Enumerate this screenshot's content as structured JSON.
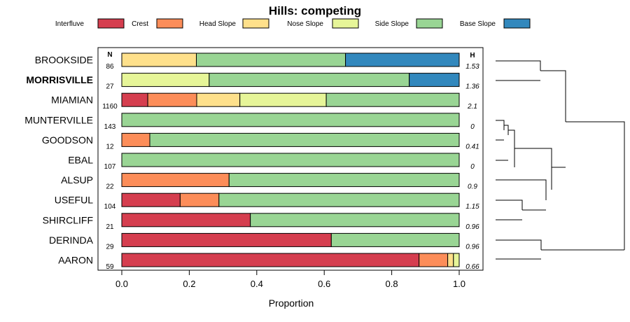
{
  "colors": {
    "Interfluve": "#d53e4f",
    "Crest": "#fc8d59",
    "Head Slope": "#fee08b",
    "Nose Slope": "#e6f598",
    "Side Slope": "#99d594",
    "Base Slope": "#3288bd"
  },
  "chart_data": {
    "type": "bar",
    "orientation": "horizontal",
    "stacked": true,
    "title": "Hills: competing",
    "xlabel": "Proportion",
    "ylabel": "",
    "xlim": [
      0,
      1
    ],
    "xticks": [
      "0.0",
      "0.2",
      "0.4",
      "0.6",
      "0.8",
      "1.0"
    ],
    "n_header": "N",
    "h_header": "H",
    "legend": [
      "Interfluve",
      "Crest",
      "Head Slope",
      "Nose Slope",
      "Side Slope",
      "Base Slope"
    ],
    "legend_position": "top",
    "categories": [
      "BROOKSIDE",
      "MORRISVILLE",
      "MIAMIAN",
      "MUNTERVILLE",
      "GOODSON",
      "EBAL",
      "ALSUP",
      "USEFUL",
      "SHIRCLIFF",
      "DERINDA",
      "AARON"
    ],
    "highlight": "MORRISVILLE",
    "N": [
      "86",
      "27",
      "1160",
      "143",
      "12",
      "107",
      "22",
      "104",
      "21",
      "29",
      "59"
    ],
    "H": [
      "1.53",
      "1.36",
      "2.1",
      "0",
      "0.41",
      "0",
      "0.9",
      "1.15",
      "0.96",
      "0.96",
      "0.66"
    ],
    "series": [
      {
        "name": "Interfluve",
        "values": [
          0,
          0,
          0.077,
          0,
          0,
          0,
          0,
          0.173,
          0.381,
          0.621,
          0.881
        ]
      },
      {
        "name": "Crest",
        "values": [
          0,
          0,
          0.145,
          0,
          0.083,
          0,
          0.318,
          0.115,
          0,
          0,
          0.085
        ]
      },
      {
        "name": "Head Slope",
        "values": [
          0.221,
          0,
          0.128,
          0,
          0,
          0,
          0,
          0,
          0,
          0,
          0.017
        ]
      },
      {
        "name": "Nose Slope",
        "values": [
          0,
          0.259,
          0.256,
          0,
          0,
          0,
          0,
          0,
          0,
          0,
          0.017
        ]
      },
      {
        "name": "Side Slope",
        "values": [
          0.442,
          0.593,
          0.394,
          1.0,
          0.917,
          1.0,
          0.682,
          0.712,
          0.619,
          0.379,
          0
        ]
      },
      {
        "name": "Base Slope",
        "values": [
          0.337,
          0.148,
          0,
          0,
          0,
          0,
          0,
          0,
          0,
          0,
          0
        ]
      }
    ]
  }
}
